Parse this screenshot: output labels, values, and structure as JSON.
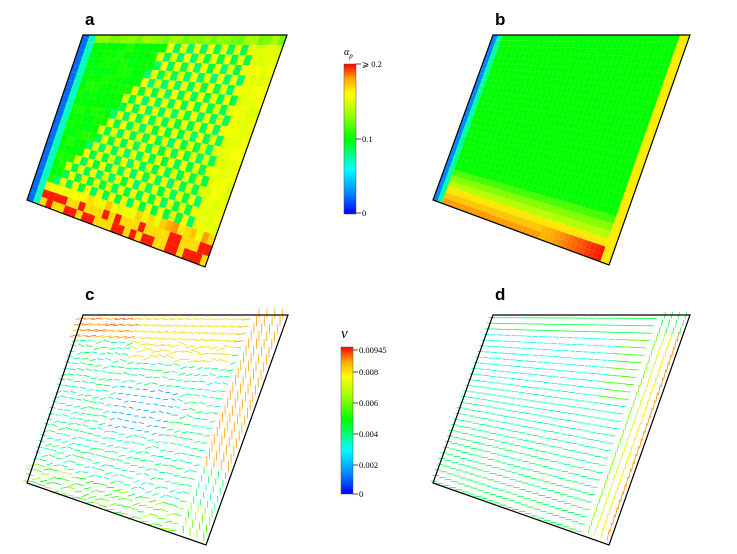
{
  "panels": [
    {
      "label": "a",
      "field": "volume fraction",
      "pattern": "checker"
    },
    {
      "label": "b",
      "field": "volume fraction",
      "pattern": "smooth"
    },
    {
      "label": "c",
      "field": "velocity",
      "pattern": "turbulent"
    },
    {
      "label": "d",
      "field": "velocity",
      "pattern": "laminar"
    }
  ],
  "colorbars": [
    {
      "title": "α_p",
      "title_main": "α",
      "title_sub": "p",
      "ticks": [
        "⩾ 0.2",
        "0.1",
        "0"
      ]
    },
    {
      "title": "v",
      "ticks": [
        "0.00945",
        "0.008",
        "0.006",
        "0.004",
        "0.002",
        "0"
      ]
    }
  ],
  "colormap": [
    "#0000ff",
    "#00aaff",
    "#00ffff",
    "#00ff55",
    "#00ff00",
    "#aaff00",
    "#ffff00",
    "#ffaa00",
    "#ff0000"
  ]
}
